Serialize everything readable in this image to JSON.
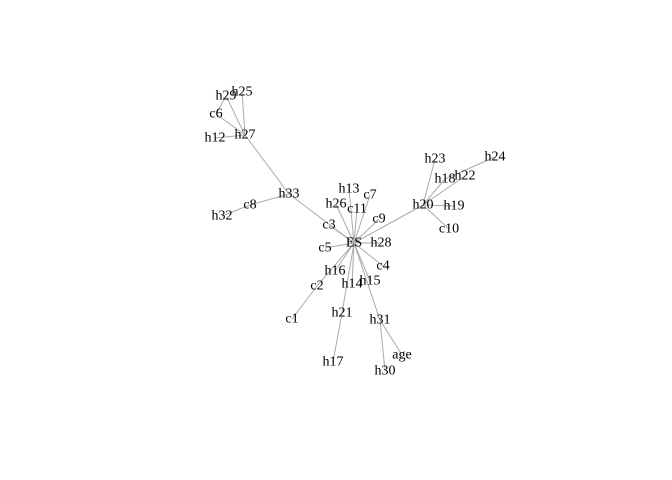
{
  "graph": {
    "nodes": [
      "ES",
      "h13",
      "c7",
      "h26",
      "c11",
      "c3",
      "c9",
      "h28",
      "c5",
      "h16",
      "c4",
      "h14",
      "h15",
      "c2",
      "c1",
      "h21",
      "h17",
      "h31",
      "h30",
      "age",
      "h33",
      "c8",
      "h32",
      "h27",
      "h12",
      "c6",
      "h29",
      "h25",
      "h20",
      "h19",
      "c10",
      "h18",
      "h23",
      "h22",
      "h24"
    ],
    "edges": [
      [
        "ES",
        "h13"
      ],
      [
        "ES",
        "c7"
      ],
      [
        "ES",
        "h26"
      ],
      [
        "ES",
        "c11"
      ],
      [
        "ES",
        "c3"
      ],
      [
        "ES",
        "c9"
      ],
      [
        "ES",
        "h28"
      ],
      [
        "ES",
        "c5"
      ],
      [
        "ES",
        "h16"
      ],
      [
        "ES",
        "c4"
      ],
      [
        "ES",
        "h14"
      ],
      [
        "ES",
        "h15"
      ],
      [
        "ES",
        "c2"
      ],
      [
        "ES",
        "h21"
      ],
      [
        "ES",
        "h31"
      ],
      [
        "ES",
        "h33"
      ],
      [
        "ES",
        "h20"
      ],
      [
        "c2",
        "c1"
      ],
      [
        "h21",
        "h17"
      ],
      [
        "h31",
        "h30"
      ],
      [
        "h31",
        "age"
      ],
      [
        "h33",
        "c8"
      ],
      [
        "c8",
        "h32"
      ],
      [
        "h33",
        "h27"
      ],
      [
        "h27",
        "h12"
      ],
      [
        "h27",
        "c6"
      ],
      [
        "h27",
        "h29"
      ],
      [
        "h27",
        "h25"
      ],
      [
        "c6",
        "h29"
      ],
      [
        "h20",
        "h19"
      ],
      [
        "h20",
        "c10"
      ],
      [
        "h20",
        "h18"
      ],
      [
        "h20",
        "h23"
      ],
      [
        "h20",
        "h22"
      ],
      [
        "h18",
        "h24"
      ]
    ]
  }
}
